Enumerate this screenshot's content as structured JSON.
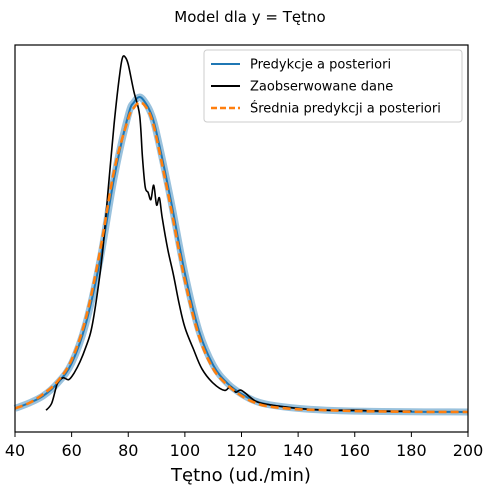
{
  "chart_data": {
    "type": "line",
    "title": "Model dla y = Tętno",
    "xlabel": "Tętno (ud./min)",
    "ylabel": "",
    "xlim": [
      40,
      200
    ],
    "xticks": [
      40,
      60,
      80,
      100,
      120,
      140,
      160,
      180,
      200
    ],
    "yticks_visible": false,
    "grid": false,
    "legend_placement": "top-right",
    "legend": [
      "Predykcje a posteriori",
      "Zaobserwowane dane",
      "Średnia predykcji a posteriori"
    ],
    "colors": {
      "posterior_predictive": "#1f77b4",
      "observed": "#000000",
      "posterior_mean": "#ff7f0e"
    },
    "series": [
      {
        "name": "Predykcje a posteriori",
        "style": "band",
        "x": [
          40,
          45,
          50,
          55,
          60,
          65,
          70,
          75,
          80,
          82,
          84,
          86,
          88,
          90,
          95,
          100,
          105,
          110,
          115,
          120,
          125,
          130,
          140,
          150,
          160,
          170,
          180,
          190,
          200
        ],
        "y": [
          0.002,
          0.005,
          0.009,
          0.016,
          0.027,
          0.049,
          0.084,
          0.13,
          0.165,
          0.172,
          0.175,
          0.172,
          0.166,
          0.155,
          0.118,
          0.077,
          0.045,
          0.026,
          0.016,
          0.01,
          0.006,
          0.004,
          0.002,
          0.001,
          0.0005,
          0.0003,
          0.0001,
          5e-05,
          0.0
        ]
      },
      {
        "name": "Zaobserwowane dane",
        "style": "solid",
        "x": [
          51,
          53,
          55,
          57,
          59,
          61,
          63,
          65,
          67,
          69,
          71,
          73,
          75,
          77,
          78,
          79,
          80,
          82,
          84,
          85,
          86,
          87,
          88,
          89,
          90,
          91,
          92,
          94,
          96,
          98,
          100,
          103,
          106,
          110,
          114,
          116,
          118,
          120,
          125,
          130,
          140,
          150,
          160,
          170,
          180
        ],
        "y": [
          0.001,
          0.005,
          0.016,
          0.019,
          0.018,
          0.022,
          0.028,
          0.036,
          0.046,
          0.065,
          0.09,
          0.125,
          0.16,
          0.188,
          0.197,
          0.197,
          0.193,
          0.178,
          0.165,
          0.142,
          0.125,
          0.122,
          0.118,
          0.126,
          0.115,
          0.119,
          0.108,
          0.09,
          0.076,
          0.06,
          0.047,
          0.035,
          0.024,
          0.016,
          0.012,
          0.014,
          0.011,
          0.012,
          0.006,
          0.004,
          0.002,
          0.001,
          0.001,
          0.0005,
          0.0005
        ]
      },
      {
        "name": "Średnia predykcji a posteriori",
        "style": "dashed",
        "x": [
          40,
          45,
          50,
          55,
          60,
          65,
          70,
          75,
          80,
          82,
          84,
          86,
          88,
          90,
          95,
          100,
          105,
          110,
          115,
          120,
          125,
          130,
          140,
          150,
          160,
          170,
          180,
          190,
          200
        ],
        "y": [
          0.002,
          0.005,
          0.01,
          0.017,
          0.029,
          0.052,
          0.089,
          0.134,
          0.163,
          0.169,
          0.172,
          0.17,
          0.164,
          0.152,
          0.114,
          0.073,
          0.042,
          0.024,
          0.015,
          0.009,
          0.005,
          0.003,
          0.0015,
          0.001,
          0.0005,
          0.0003,
          0.0001,
          5e-05,
          0.0
        ]
      }
    ]
  }
}
